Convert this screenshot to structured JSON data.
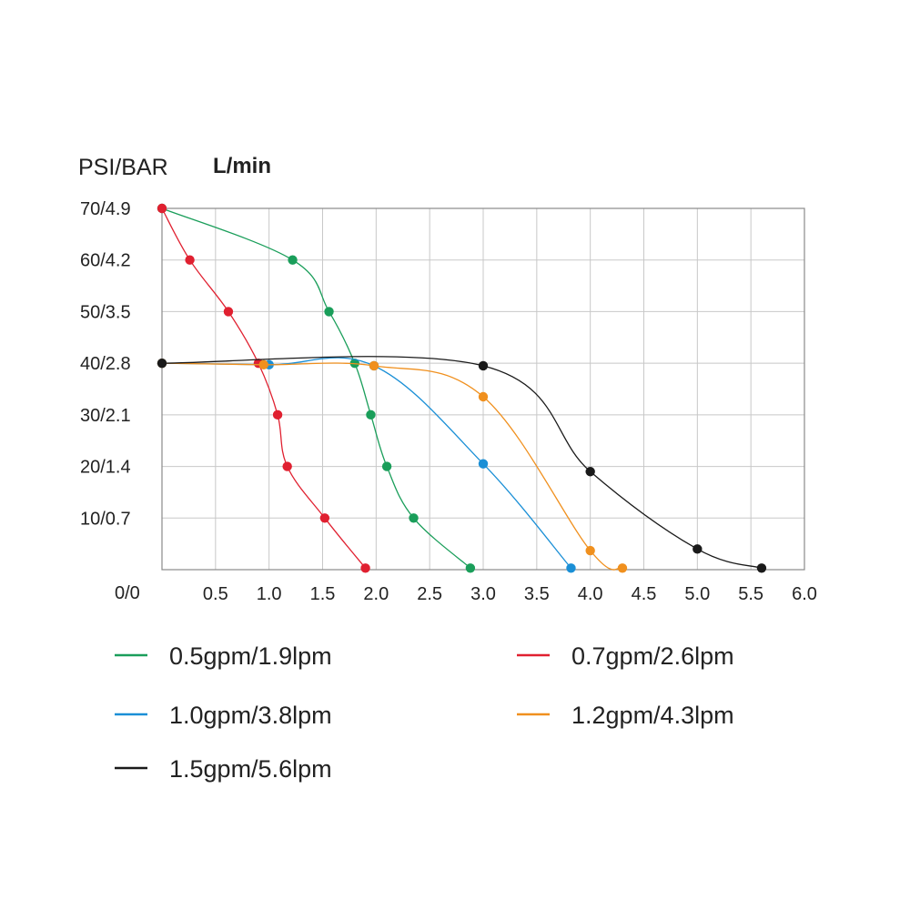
{
  "chart_data": {
    "type": "line",
    "ylabel": "PSI/BAR",
    "xlabel": "L/min",
    "x_origin_label": "0/0",
    "xlim": [
      0,
      6
    ],
    "ylim": [
      0,
      70
    ],
    "grid": true,
    "x_ticks": [
      {
        "value": 0.5,
        "label": "0.5"
      },
      {
        "value": 1.0,
        "label": "1.0"
      },
      {
        "value": 1.5,
        "label": "1.5"
      },
      {
        "value": 2.0,
        "label": "2.0"
      },
      {
        "value": 2.5,
        "label": "2.5"
      },
      {
        "value": 3.0,
        "label": "3.0"
      },
      {
        "value": 3.5,
        "label": "3.5"
      },
      {
        "value": 4.0,
        "label": "4.0"
      },
      {
        "value": 4.5,
        "label": "4.5"
      },
      {
        "value": 5.0,
        "label": "5.0"
      },
      {
        "value": 5.5,
        "label": "5.5"
      },
      {
        "value": 6.0,
        "label": "6.0"
      }
    ],
    "y_ticks": [
      {
        "value": 10,
        "label": "10/0.7"
      },
      {
        "value": 20,
        "label": "20/1.4"
      },
      {
        "value": 30,
        "label": "30/2.1"
      },
      {
        "value": 40,
        "label": "40/2.8"
      },
      {
        "value": 50,
        "label": "50/3.5"
      },
      {
        "value": 60,
        "label": "60/4.2"
      },
      {
        "value": 70,
        "label": "70/4.9"
      }
    ],
    "series": [
      {
        "name": "0.5gpm/1.9lpm",
        "color": "#1a9e5a",
        "x": [
          0,
          1.22,
          1.56,
          1.8,
          1.95,
          2.1,
          2.35,
          2.88
        ],
        "y": [
          70,
          60,
          50,
          40,
          30,
          20,
          10,
          0.3
        ]
      },
      {
        "name": "0.7gpm/2.6lpm",
        "color": "#e02030",
        "x": [
          0,
          0.26,
          0.62,
          0.9,
          1.08,
          1.17,
          1.52,
          1.9
        ],
        "y": [
          70,
          60,
          50,
          40,
          30,
          20,
          10,
          0.3
        ]
      },
      {
        "name": "1.0gpm/3.8lpm",
        "color": "#1a8fd6",
        "x": [
          0,
          1.0,
          1.98,
          3.0,
          3.82
        ],
        "y": [
          40,
          39.7,
          39.5,
          20.5,
          0.3
        ]
      },
      {
        "name": "1.2gpm/4.3lpm",
        "color": "#f0901e",
        "x": [
          0,
          0.95,
          1.98,
          3.0,
          4.0,
          4.3
        ],
        "y": [
          40,
          39.7,
          39.5,
          33.5,
          3.7,
          0.3
        ]
      },
      {
        "name": "1.5gpm/5.6lpm",
        "color": "#1a1a1a",
        "x": [
          0,
          3.0,
          4.0,
          5.0,
          5.6
        ],
        "y": [
          40,
          39.5,
          19,
          4,
          0.3
        ]
      }
    ]
  }
}
